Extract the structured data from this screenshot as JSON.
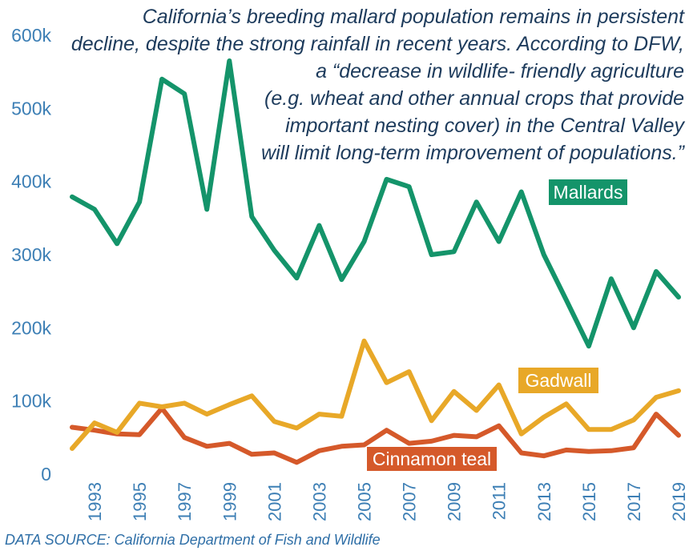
{
  "annotation": {
    "lines": [
      "California’s breeding mallard  population remains in persistent",
      "decline, despite the strong rainfall in recent years. According to DFW,",
      "a “decrease in wildlife- friendly agriculture",
      "(e.g. wheat and other annual crops that provide",
      "important nesting cover) in the Central Valley",
      "will limit long-term improvement of populations.”"
    ]
  },
  "source": "DATA SOURCE: California Department of Fish and Wildlife",
  "chart_data": {
    "type": "line",
    "x": [
      1992,
      1993,
      1994,
      1995,
      1996,
      1997,
      1998,
      1999,
      2000,
      2001,
      2002,
      2003,
      2004,
      2005,
      2006,
      2007,
      2008,
      2009,
      2010,
      2011,
      2012,
      2013,
      2014,
      2015,
      2016,
      2017,
      2018,
      2019
    ],
    "x_tick_labels": [
      "1993",
      "1995",
      "1997",
      "1999",
      "2001",
      "2003",
      "2005",
      "2007",
      "2009",
      "2011",
      "2013",
      "2015",
      "2017",
      "2019"
    ],
    "y_tick_labels": [
      "0",
      "100k",
      "200k",
      "300k",
      "400k",
      "500k",
      "600k"
    ],
    "ylim": [
      0,
      600000
    ],
    "grid": false,
    "legend": "direct labels on lines",
    "series": [
      {
        "name": "Mallards",
        "color": "#14946a",
        "values": [
          379000,
          362000,
          315000,
          372000,
          540000,
          520000,
          362000,
          565000,
          352000,
          306000,
          268000,
          340000,
          266000,
          318000,
          403000,
          393000,
          300000,
          304000,
          372000,
          318000,
          386000,
          300000,
          238000,
          175000,
          267000,
          200000,
          277000,
          242000
        ]
      },
      {
        "name": "Gadwall",
        "color": "#e8a828",
        "values": [
          35000,
          70000,
          57000,
          97000,
          92000,
          97000,
          82000,
          95000,
          107000,
          72000,
          63000,
          82000,
          79000,
          182000,
          125000,
          140000,
          73000,
          113000,
          87000,
          122000,
          55000,
          78000,
          96000,
          61000,
          61000,
          74000,
          105000,
          114000
        ]
      },
      {
        "name": "Cinnamon teal",
        "color": "#d5592a",
        "values": [
          64000,
          60000,
          55000,
          54000,
          90000,
          50000,
          38000,
          42000,
          27000,
          29000,
          16000,
          32000,
          38000,
          40000,
          60000,
          42000,
          45000,
          53000,
          51000,
          66000,
          29000,
          25000,
          33000,
          31000,
          32000,
          36000,
          82000,
          53000
        ]
      }
    ]
  }
}
